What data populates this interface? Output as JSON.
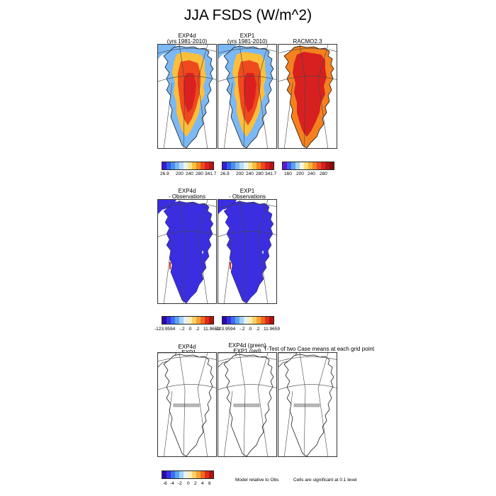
{
  "title": "JJA FSDS (W/m^2)",
  "row1": {
    "panels": [
      {
        "line1": "EXP4d",
        "line2": "(yrs 1981-2010)"
      },
      {
        "line1": "EXP1",
        "line2": "(yrs 1981-2010)"
      },
      {
        "line1": "RACMO2.3",
        "line2": ""
      }
    ],
    "colorbars": [
      {
        "labels": [
          "26.9",
          "200",
          "240",
          "280",
          "341.7"
        ]
      },
      {
        "labels": [
          "26.9",
          "200",
          "240",
          "280",
          "341.7"
        ]
      },
      {
        "labels": [
          "160",
          "200",
          "240",
          "280"
        ]
      }
    ]
  },
  "row2": {
    "panels": [
      {
        "line1": "EXP4d",
        "line2": "- Observations"
      },
      {
        "line1": "EXP1",
        "line2": "- Observations"
      }
    ],
    "colorbars": [
      {
        "labels": [
          "-123.9594",
          "-.2",
          ".0",
          ".2",
          "11.9659"
        ]
      },
      {
        "labels": [
          "-123.9594",
          "-.2",
          ".0",
          ".2",
          "11.9659"
        ]
      }
    ]
  },
  "row3": {
    "panels": [
      {
        "line1": "EXP4d",
        "line2": "- EXP1"
      },
      {
        "line1": "EXP4d (green)",
        "line2": "EXP1 (red)"
      }
    ],
    "ttest_title": "T-Test of two Case means at each grid point",
    "colorbar": {
      "labels": [
        "-6",
        "-4",
        "-2",
        "0",
        "2",
        "4",
        "6"
      ]
    },
    "note_model": "Model relative to Obs",
    "note_cells": "Cells are significant at 0.1 level"
  },
  "palettes": {
    "fsds": [
      "#3a1ad8",
      "#2e5de8",
      "#4a8ef0",
      "#7bb8f4",
      "#b8dcf6",
      "#e8f4f8",
      "#fde68a",
      "#fbbf3c",
      "#f58a1f",
      "#ee4a1d",
      "#dc2020",
      "#b81414"
    ],
    "racmo": [
      "#5a1ad8",
      "#3a60e8",
      "#5aa0f0",
      "#a8d4f4",
      "#f6f6d8",
      "#fde074",
      "#fbb33a",
      "#f4801e",
      "#ea4a1e",
      "#d82020",
      "#b01414",
      "#8a0a0a"
    ],
    "diff": [
      "#2a0aa8",
      "#3a2ee0",
      "#3a6ef0",
      "#5fa4f4",
      "#a6d0f6",
      "#e4f2f8",
      "#fdf0b0",
      "#fcd068",
      "#f8a234",
      "#f06a20",
      "#de2e1c",
      "#b01212"
    ],
    "ttest": [
      "#2a0aa8",
      "#3a2ee0",
      "#3a6ef0",
      "#5fa4f4",
      "#a6d0f6",
      "#e4f2f8",
      "#fdf0b0",
      "#fcd068",
      "#f8a234",
      "#f06a20",
      "#de2e1c",
      "#b01212"
    ]
  }
}
